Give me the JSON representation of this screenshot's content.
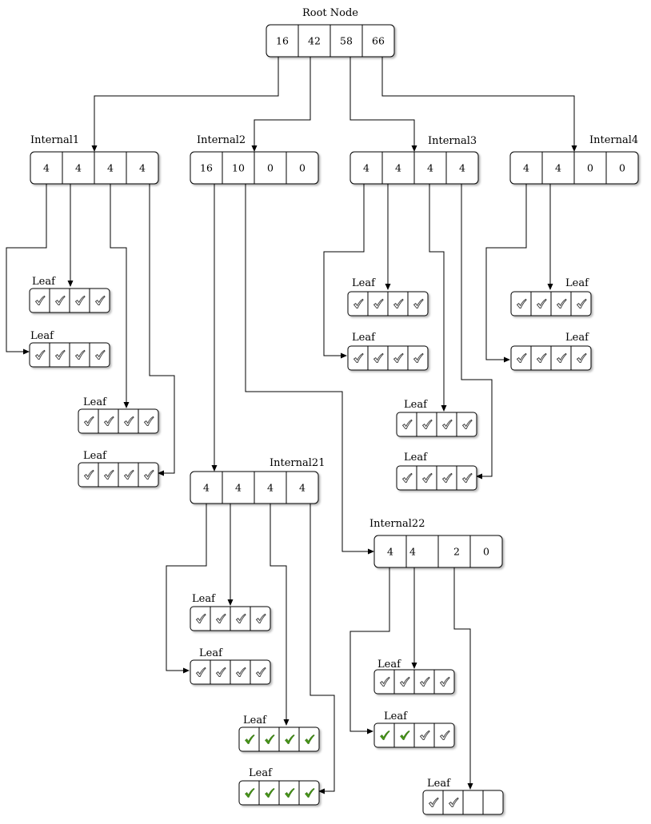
{
  "root": {
    "label": "Root Node",
    "values": [
      "16",
      "42",
      "58",
      "66"
    ]
  },
  "internals": [
    {
      "id": "internal1",
      "label": "Internal1",
      "values": [
        "4",
        "4",
        "4",
        "4"
      ]
    },
    {
      "id": "internal2",
      "label": "Internal2",
      "values": [
        "16",
        "10",
        "0",
        "0"
      ]
    },
    {
      "id": "internal3",
      "label": "Internal3",
      "values": [
        "4",
        "4",
        "4",
        "4"
      ]
    },
    {
      "id": "internal4",
      "label": "Internal4",
      "values": [
        "4",
        "4",
        "0",
        "0"
      ]
    },
    {
      "id": "internal21",
      "label": "Internal21",
      "values": [
        "4",
        "4",
        "4",
        "4"
      ]
    },
    {
      "id": "internal22",
      "label": "Internal22",
      "values": [
        "4",
        "4",
        "2",
        "0"
      ]
    }
  ],
  "leaf_label": "Leaf",
  "leaves": [
    {
      "id": "leaf-i1-a",
      "label": "Leaf",
      "cells": [
        "check",
        "check",
        "check",
        "check"
      ]
    },
    {
      "id": "leaf-i1-b",
      "label": "Leaf",
      "cells": [
        "check",
        "check",
        "check",
        "check"
      ]
    },
    {
      "id": "leaf-i1-c",
      "label": "Leaf",
      "cells": [
        "check",
        "check",
        "check",
        "check"
      ]
    },
    {
      "id": "leaf-i1-d",
      "label": "Leaf",
      "cells": [
        "check",
        "check",
        "check",
        "check"
      ]
    },
    {
      "id": "leaf-i3-a",
      "label": "Leaf",
      "cells": [
        "check",
        "check",
        "check",
        "check"
      ]
    },
    {
      "id": "leaf-i3-b",
      "label": "Leaf",
      "cells": [
        "check",
        "check",
        "check",
        "check"
      ]
    },
    {
      "id": "leaf-i3-c",
      "label": "Leaf",
      "cells": [
        "check",
        "check",
        "check",
        "check"
      ]
    },
    {
      "id": "leaf-i3-d",
      "label": "Leaf",
      "cells": [
        "check",
        "check",
        "check",
        "check"
      ]
    },
    {
      "id": "leaf-i4-a",
      "label": "Leaf",
      "cells": [
        "check",
        "check",
        "check",
        "check"
      ]
    },
    {
      "id": "leaf-i4-b",
      "label": "Leaf",
      "cells": [
        "check",
        "check",
        "check",
        "check"
      ]
    },
    {
      "id": "leaf-i21-a",
      "label": "Leaf",
      "cells": [
        "check",
        "check",
        "check",
        "check"
      ]
    },
    {
      "id": "leaf-i21-b",
      "label": "Leaf",
      "cells": [
        "check",
        "check",
        "check",
        "check"
      ]
    },
    {
      "id": "leaf-i21-c",
      "label": "Leaf",
      "cells": [
        "green",
        "green",
        "green",
        "green"
      ]
    },
    {
      "id": "leaf-i21-d",
      "label": "Leaf",
      "cells": [
        "green",
        "green",
        "green",
        "green"
      ]
    },
    {
      "id": "leaf-i22-a",
      "label": "Leaf",
      "cells": [
        "check",
        "check",
        "check",
        "check"
      ]
    },
    {
      "id": "leaf-i22-b",
      "label": "Leaf",
      "cells": [
        "green",
        "green",
        "check",
        "check"
      ]
    },
    {
      "id": "leaf-i22-c",
      "label": "Leaf",
      "cells": [
        "check",
        "check",
        "empty",
        "empty"
      ]
    }
  ],
  "colors": {
    "check_grey": "#ffffff",
    "check_outline": "#333333",
    "check_green": "#4a9a1a"
  }
}
